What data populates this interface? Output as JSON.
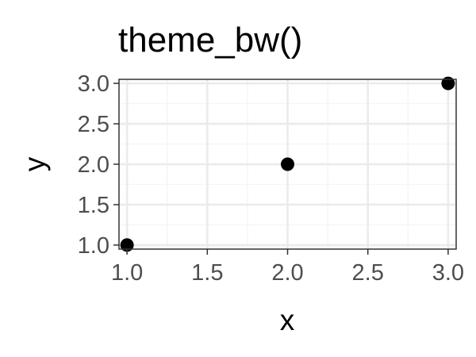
{
  "chart_data": {
    "type": "scatter",
    "title": "theme_bw()",
    "xlabel": "x",
    "ylabel": "y",
    "x": [
      1.0,
      2.0,
      3.0
    ],
    "y": [
      1.0,
      2.0,
      3.0
    ],
    "xlim": [
      0.95,
      3.05
    ],
    "ylim": [
      0.95,
      3.05
    ],
    "x_ticks": [
      "1.0",
      "1.5",
      "2.0",
      "2.5",
      "3.0"
    ],
    "y_ticks": [
      "1.0",
      "1.5",
      "2.0",
      "2.5",
      "3.0"
    ],
    "grid": true,
    "theme": "bw",
    "colors": {
      "point": "#000000",
      "panel_border": "#333333",
      "grid_major": "#ebebeb",
      "grid_minor": "#f5f5f5",
      "tick_label": "#4d4d4d"
    }
  }
}
